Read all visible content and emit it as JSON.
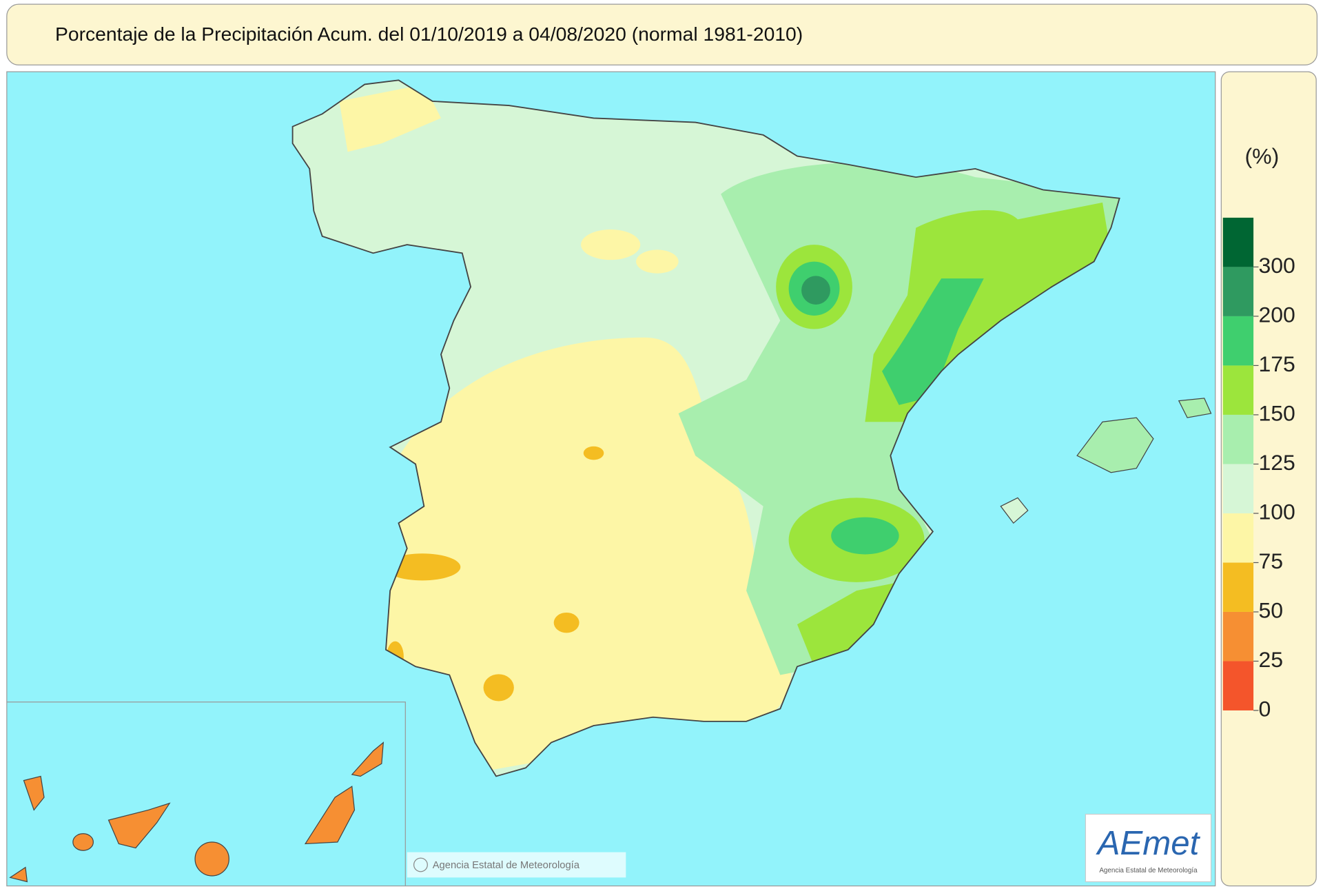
{
  "title": "Porcentaje de la Precipitación Acum. del 01/10/2019 a  04/08/2020  (normal 1981-2010)",
  "legend": {
    "unit": "(%)",
    "ticks": [
      0,
      25,
      50,
      75,
      100,
      125,
      150,
      175,
      200,
      300
    ],
    "colors": [
      "#f4552b",
      "#f68f33",
      "#f4bd22",
      "#fdf6a6",
      "#d6f6d6",
      "#a8eeae",
      "#9ce53c",
      "#3fcf6e",
      "#2f9a60",
      "#006633"
    ]
  },
  "credit": "Agencia Estatal de Meteorología",
  "logo": {
    "name": "AEmet",
    "caption": "Agencia Estatal de Meteorología"
  }
}
